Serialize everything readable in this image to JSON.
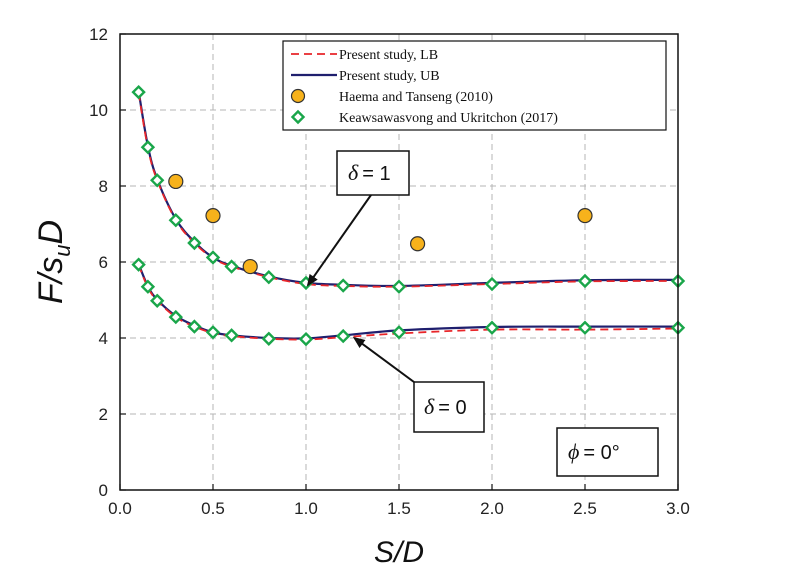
{
  "chart_data": {
    "type": "line",
    "xlabel_main": "S",
    "xlabel_sep": "/",
    "xlabel_tail": "D",
    "ylabel_main": "F",
    "ylabel_sep": "/s",
    "ylabel_sub": "u",
    "ylabel_tail": "D",
    "xlim": [
      0,
      3.0
    ],
    "ylim": [
      0,
      12
    ],
    "grid": true,
    "legend_position": "top-right",
    "x_ticks": [
      "0.0",
      "0.5",
      "1.0",
      "1.5",
      "2.0",
      "2.5",
      "3.0"
    ],
    "y_ticks": [
      "0",
      "2",
      "4",
      "6",
      "8",
      "10",
      "12"
    ],
    "colors": {
      "lb": "#e8262a",
      "ub": "#1f1f6e",
      "haema_fill": "#f7b21b",
      "keaw_stroke": "#1aa64a"
    },
    "series": [
      {
        "name": "Present study, LB",
        "style": "dashed",
        "curves": [
          {
            "x": [
              0.1,
              0.15,
              0.2,
              0.3,
              0.4,
              0.5,
              0.6,
              0.8,
              1.0,
              1.2,
              1.5,
              2.0,
              2.5,
              3.0
            ],
            "y": [
              10.45,
              9.0,
              8.15,
              7.1,
              6.5,
              6.1,
              5.88,
              5.6,
              5.42,
              5.37,
              5.35,
              5.42,
              5.49,
              5.5
            ]
          },
          {
            "x": [
              0.1,
              0.15,
              0.2,
              0.3,
              0.4,
              0.5,
              0.6,
              0.8,
              1.0,
              1.2,
              1.5,
              2.0,
              2.5,
              3.0
            ],
            "y": [
              5.92,
              5.33,
              4.98,
              4.55,
              4.3,
              4.13,
              4.05,
              3.98,
              3.96,
              4.02,
              4.12,
              4.22,
              4.22,
              4.25
            ]
          }
        ]
      },
      {
        "name": "Present study, UB",
        "style": "solid",
        "curves": [
          {
            "x": [
              0.1,
              0.15,
              0.2,
              0.3,
              0.4,
              0.5,
              0.6,
              0.8,
              1.0,
              1.2,
              1.5,
              2.0,
              2.5,
              3.0
            ],
            "y": [
              10.5,
              9.05,
              8.18,
              7.13,
              6.53,
              6.12,
              5.9,
              5.62,
              5.45,
              5.4,
              5.37,
              5.45,
              5.52,
              5.53
            ]
          },
          {
            "x": [
              0.1,
              0.15,
              0.2,
              0.3,
              0.4,
              0.5,
              0.6,
              0.8,
              1.0,
              1.2,
              1.5,
              2.0,
              2.5,
              3.0
            ],
            "y": [
              5.95,
              5.36,
              5.01,
              4.58,
              4.33,
              4.15,
              4.07,
              4.0,
              3.99,
              4.07,
              4.2,
              4.29,
              4.3,
              4.3
            ]
          }
        ]
      },
      {
        "name": "Haema and Tanseng (2010)",
        "style": "circle-marker",
        "points": [
          {
            "x": 0.3,
            "y": 8.12
          },
          {
            "x": 0.5,
            "y": 7.22
          },
          {
            "x": 0.7,
            "y": 5.88
          },
          {
            "x": 1.6,
            "y": 6.48
          },
          {
            "x": 2.5,
            "y": 7.22
          }
        ]
      },
      {
        "name": "Keawsawasvong and Ukritchon (2017)",
        "style": "diamond-marker",
        "points": [
          {
            "x": 0.1,
            "y": 10.47
          },
          {
            "x": 0.15,
            "y": 9.02
          },
          {
            "x": 0.2,
            "y": 8.15
          },
          {
            "x": 0.3,
            "y": 7.1
          },
          {
            "x": 0.4,
            "y": 6.5
          },
          {
            "x": 0.5,
            "y": 6.12
          },
          {
            "x": 0.6,
            "y": 5.88
          },
          {
            "x": 0.8,
            "y": 5.6
          },
          {
            "x": 1.0,
            "y": 5.45
          },
          {
            "x": 1.2,
            "y": 5.38
          },
          {
            "x": 1.5,
            "y": 5.35
          },
          {
            "x": 2.0,
            "y": 5.42
          },
          {
            "x": 2.5,
            "y": 5.5
          },
          {
            "x": 3.0,
            "y": 5.5
          },
          {
            "x": 0.1,
            "y": 5.93
          },
          {
            "x": 0.15,
            "y": 5.35
          },
          {
            "x": 0.2,
            "y": 4.98
          },
          {
            "x": 0.3,
            "y": 4.55
          },
          {
            "x": 0.4,
            "y": 4.3
          },
          {
            "x": 0.5,
            "y": 4.15
          },
          {
            "x": 0.6,
            "y": 4.07
          },
          {
            "x": 0.8,
            "y": 3.98
          },
          {
            "x": 1.0,
            "y": 3.97
          },
          {
            "x": 1.2,
            "y": 4.05
          },
          {
            "x": 1.5,
            "y": 4.15
          },
          {
            "x": 2.0,
            "y": 4.27
          },
          {
            "x": 2.5,
            "y": 4.27
          },
          {
            "x": 3.0,
            "y": 4.27
          }
        ]
      }
    ],
    "annotations": [
      {
        "symbol": "δ",
        "text": "= 1",
        "arrow_to": {
          "x": 1.0,
          "y": 5.45
        }
      },
      {
        "symbol": "δ",
        "text": "= 0",
        "arrow_to": {
          "x": 1.25,
          "y": 4.05
        }
      },
      {
        "symbol": "ϕ",
        "text": "= 0°"
      }
    ]
  }
}
